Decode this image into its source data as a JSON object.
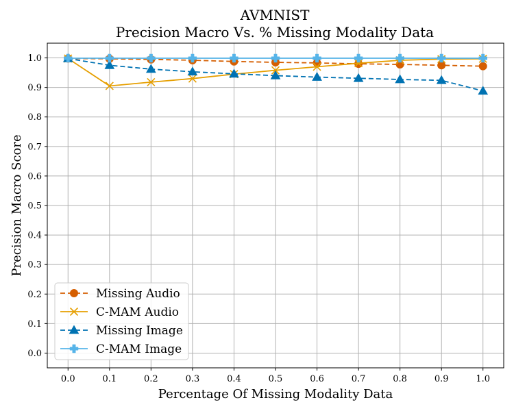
{
  "chart_data": {
    "type": "line",
    "title": "AVMNIST",
    "subtitle": "Precision Macro Vs. % Missing Modality Data",
    "xlabel": "Percentage Of Missing Modality Data",
    "ylabel": "Precision Macro Score",
    "x": [
      0.0,
      0.1,
      0.2,
      0.3,
      0.4,
      0.5,
      0.6,
      0.7,
      0.8,
      0.9,
      1.0
    ],
    "x_tick_labels": [
      "0.0",
      "0.1",
      "0.2",
      "0.3",
      "0.4",
      "0.5",
      "0.6",
      "0.7",
      "0.8",
      "0.9",
      "1.0"
    ],
    "y_ticks": [
      0.0,
      0.1,
      0.2,
      0.3,
      0.4,
      0.5,
      0.6,
      0.7,
      0.8,
      0.9,
      1.0
    ],
    "y_tick_labels": [
      "0.0",
      "0.1",
      "0.2",
      "0.3",
      "0.4",
      "0.5",
      "0.6",
      "0.7",
      "0.8",
      "0.9",
      "1.0"
    ],
    "xlim": [
      -0.05,
      1.05
    ],
    "ylim": [
      -0.05,
      1.05
    ],
    "grid": true,
    "legend_position": "lower-left",
    "series": [
      {
        "name": "Missing Audio",
        "color": "#d55e00",
        "dash": "dashed",
        "marker": "circle",
        "values": [
          0.998,
          0.997,
          0.995,
          0.992,
          0.988,
          0.985,
          0.983,
          0.98,
          0.978,
          0.975,
          0.972
        ]
      },
      {
        "name": "C-MAM Audio",
        "color": "#e69f00",
        "dash": "solid",
        "marker": "x",
        "values": [
          0.998,
          0.905,
          0.918,
          0.93,
          0.945,
          0.958,
          0.97,
          0.982,
          0.992,
          0.996,
          0.997
        ]
      },
      {
        "name": "Missing Image",
        "color": "#0072b2",
        "dash": "dashed",
        "marker": "triangle",
        "values": [
          0.998,
          0.975,
          0.962,
          0.953,
          0.946,
          0.94,
          0.935,
          0.931,
          0.927,
          0.924,
          0.888
        ]
      },
      {
        "name": "C-MAM Image",
        "color": "#56b4e9",
        "dash": "solid",
        "marker": "plus",
        "values": [
          0.999,
          0.999,
          0.999,
          0.999,
          0.999,
          0.999,
          0.999,
          0.999,
          0.999,
          0.999,
          0.999
        ]
      }
    ]
  }
}
